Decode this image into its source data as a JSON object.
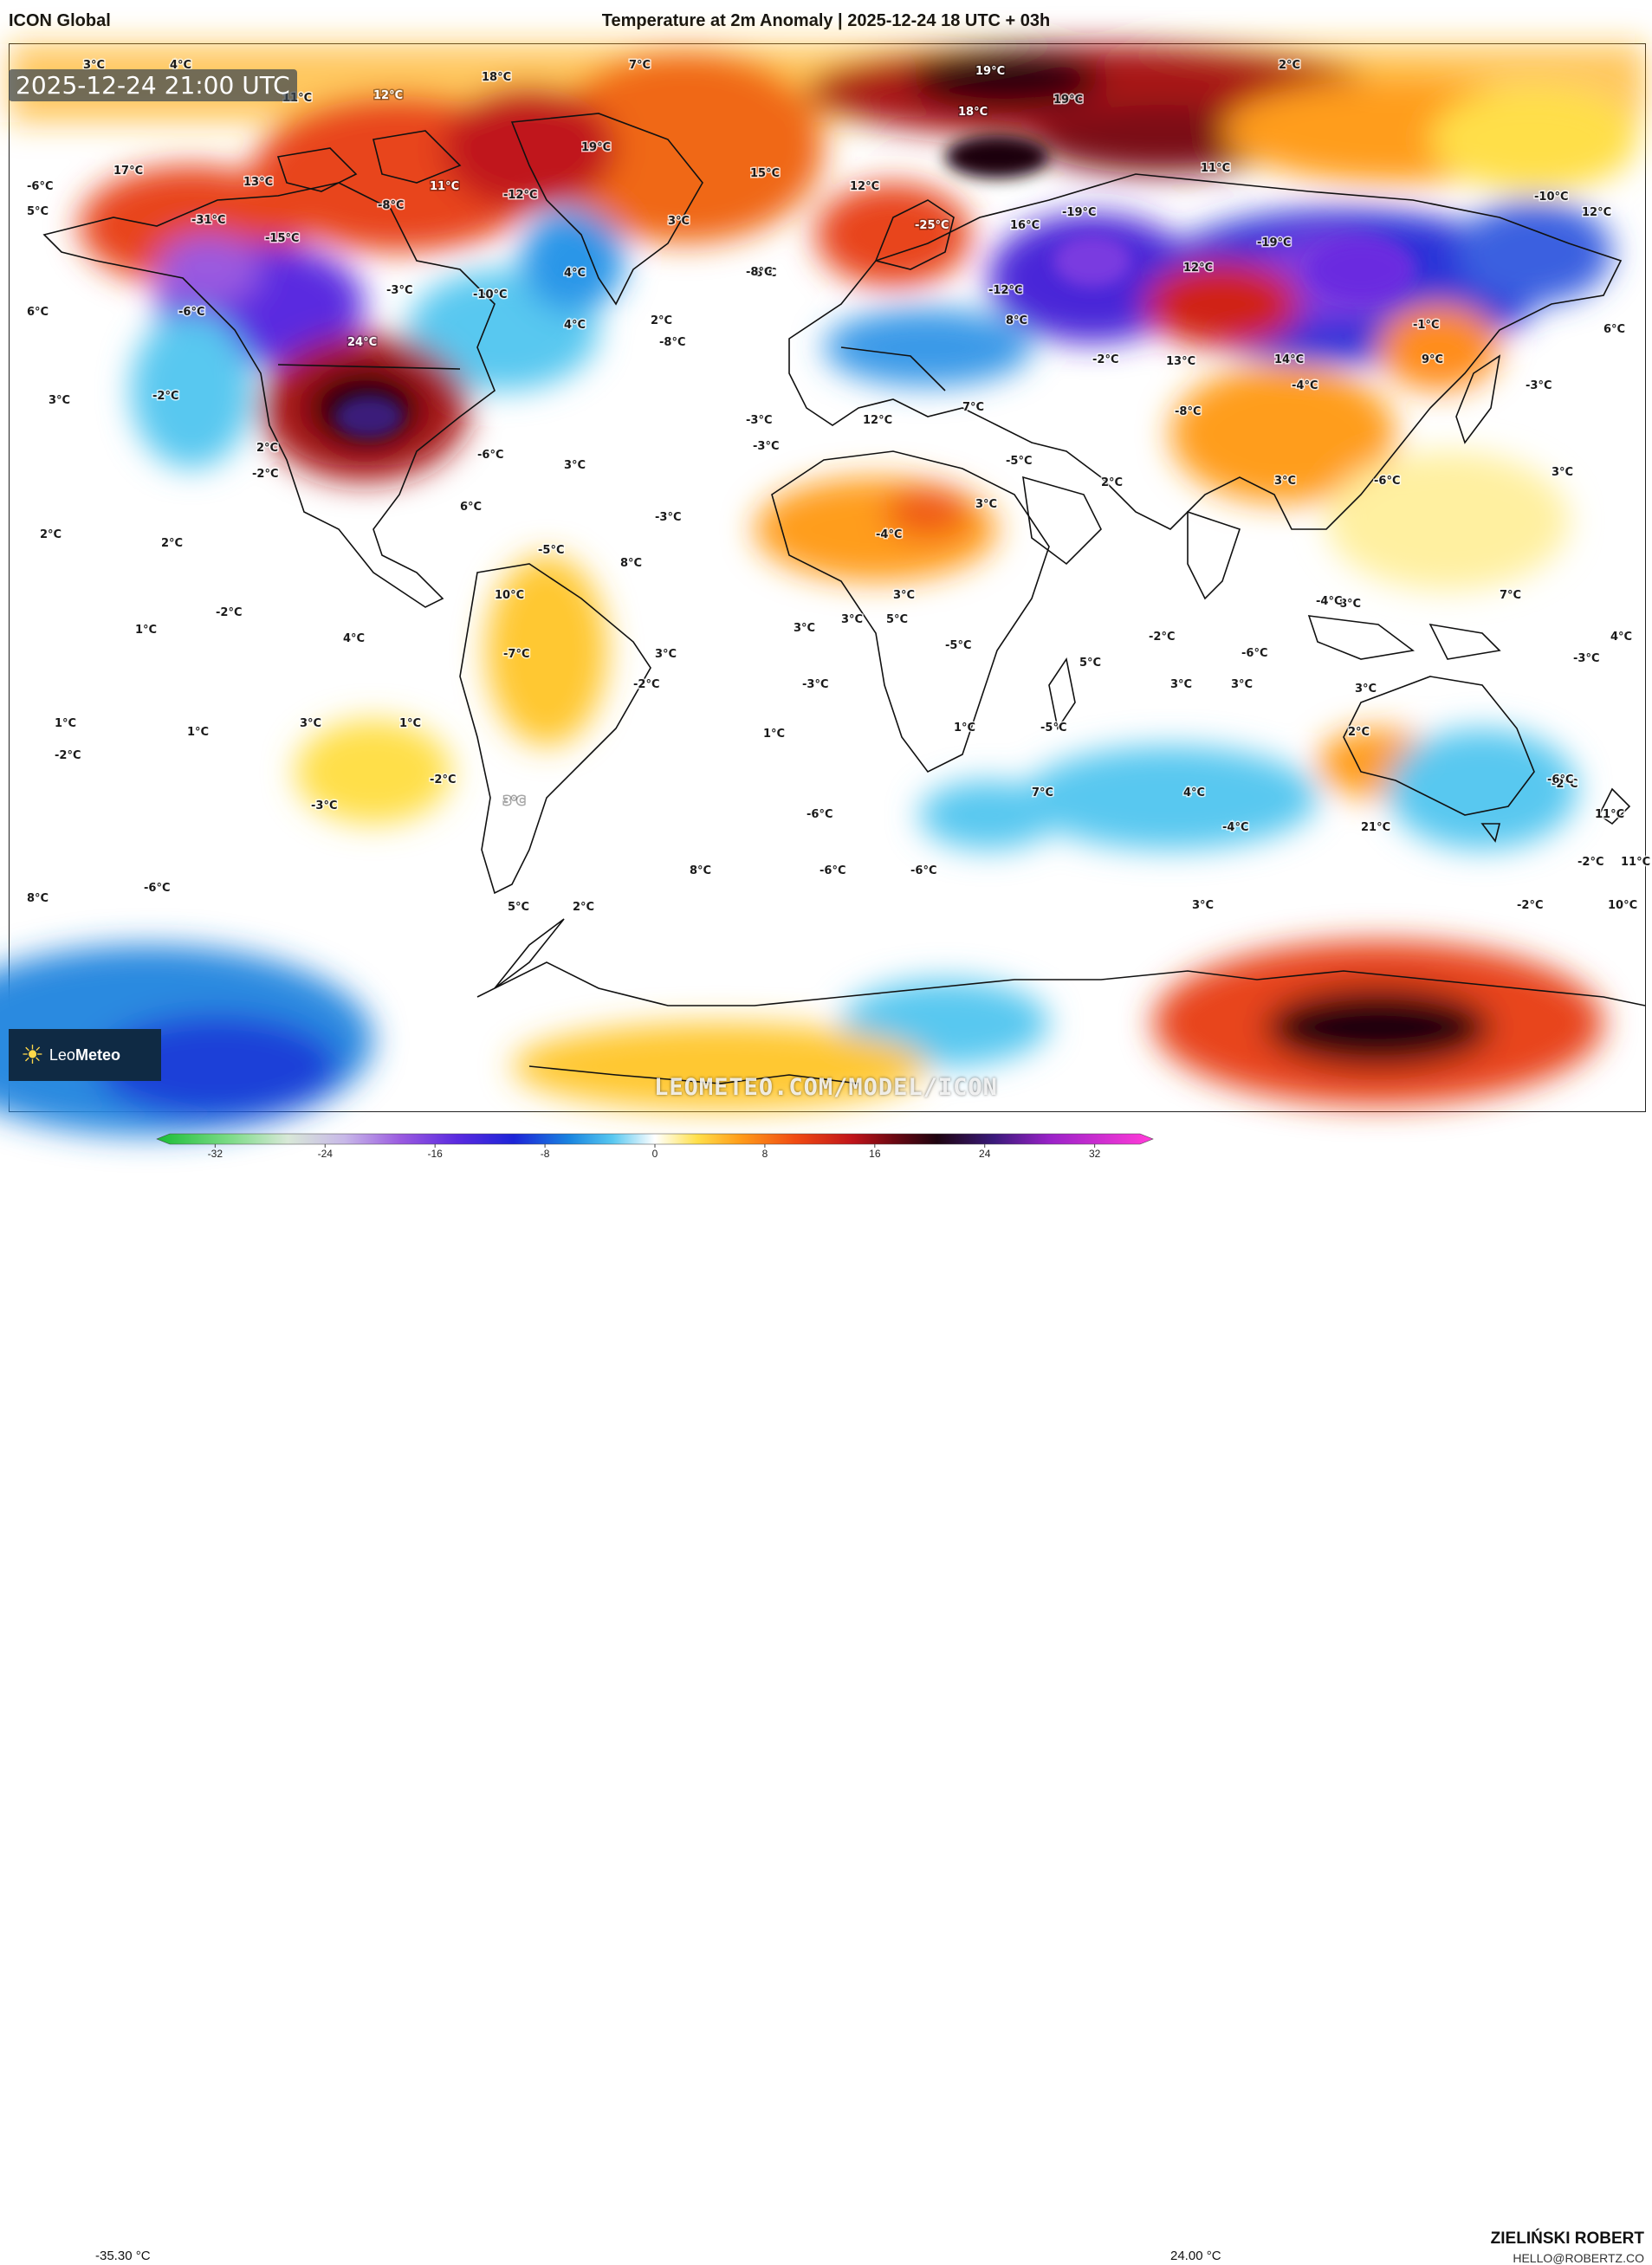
{
  "header": {
    "model": "ICON Global",
    "title": "Temperature at 2m Anomaly | 2025-12-24 18 UTC + 03h"
  },
  "map": {
    "timestamp": "2025-12-24 21:00 UTC",
    "watermark": "LEOMETEO.COM/MODEL/ICON",
    "labels": [
      {
        "t": "3°C"
      },
      {
        "t": "4°C"
      },
      {
        "t": "18°C"
      },
      {
        "t": "7°C"
      },
      {
        "t": "19°C"
      },
      {
        "t": "2°C"
      },
      {
        "t": "11°C"
      },
      {
        "t": "12°C"
      },
      {
        "t": "18°C"
      },
      {
        "t": "19°C"
      },
      {
        "t": "17°C"
      },
      {
        "t": "13°C"
      },
      {
        "t": "11°C"
      },
      {
        "t": "19°C"
      },
      {
        "t": "-12°C"
      },
      {
        "t": "-6°C"
      },
      {
        "t": "5°C"
      },
      {
        "t": "-31°C"
      },
      {
        "t": "-15°C"
      },
      {
        "t": "-8°C"
      },
      {
        "t": "15°C"
      },
      {
        "t": "12°C"
      },
      {
        "t": "-25°C"
      },
      {
        "t": "16°C"
      },
      {
        "t": "-19°C"
      },
      {
        "t": "-19°C"
      },
      {
        "t": "-10°C"
      },
      {
        "t": "12°C"
      },
      {
        "t": "11°C"
      },
      {
        "t": "-8°C"
      },
      {
        "t": "3°C"
      },
      {
        "t": "4°C"
      },
      {
        "t": "-3°C"
      },
      {
        "t": "-10°C"
      },
      {
        "t": "-8°C"
      },
      {
        "t": "-12°C"
      },
      {
        "t": "12°C"
      },
      {
        "t": "6°C"
      },
      {
        "t": "-6°C"
      },
      {
        "t": "24°C"
      },
      {
        "t": "4°C"
      },
      {
        "t": "2°C"
      },
      {
        "t": "-8°C"
      },
      {
        "t": "8°C"
      },
      {
        "t": "-2°C"
      },
      {
        "t": "13°C"
      },
      {
        "t": "14°C"
      },
      {
        "t": "-4°C"
      },
      {
        "t": "-1°C"
      },
      {
        "t": "9°C"
      },
      {
        "t": "6°C"
      },
      {
        "t": "3°C"
      },
      {
        "t": "-2°C"
      },
      {
        "t": "-3°C"
      },
      {
        "t": "3°C"
      },
      {
        "t": "-8°C"
      },
      {
        "t": "-3°C"
      },
      {
        "t": "12°C"
      },
      {
        "t": "7°C"
      },
      {
        "t": "-3°C"
      },
      {
        "t": "2°C"
      },
      {
        "t": "-2°C"
      },
      {
        "t": "-6°C"
      },
      {
        "t": "3°C"
      },
      {
        "t": "-5°C"
      },
      {
        "t": "2°C"
      },
      {
        "t": "3°C"
      },
      {
        "t": "-6°C"
      },
      {
        "t": "3°C"
      },
      {
        "t": "6°C"
      },
      {
        "t": "-3°C"
      },
      {
        "t": "2°C"
      },
      {
        "t": "2°C"
      },
      {
        "t": "-5°C"
      },
      {
        "t": "8°C"
      },
      {
        "t": "-4°C"
      },
      {
        "t": "3°C"
      },
      {
        "t": "8°C"
      },
      {
        "t": "-4°C"
      },
      {
        "t": "7°C"
      },
      {
        "t": "-2°C"
      },
      {
        "t": "10°C"
      },
      {
        "t": "5°C"
      },
      {
        "t": "3°C"
      },
      {
        "t": "1°C"
      },
      {
        "t": "4°C"
      },
      {
        "t": "3°C"
      },
      {
        "t": "-5°C"
      },
      {
        "t": "-2°C"
      },
      {
        "t": "-6°C"
      },
      {
        "t": "4°C"
      },
      {
        "t": "-7°C"
      },
      {
        "t": "3°C"
      },
      {
        "t": "5°C"
      },
      {
        "t": "-3°C"
      },
      {
        "t": "-2°C"
      },
      {
        "t": "-3°C"
      },
      {
        "t": "3°C"
      },
      {
        "t": "1°C"
      },
      {
        "t": "3°C"
      },
      {
        "t": "-5°C"
      },
      {
        "t": "1°C"
      },
      {
        "t": "3°C"
      },
      {
        "t": "3°C"
      },
      {
        "t": "1°C"
      },
      {
        "t": "1°C"
      },
      {
        "t": "1°C"
      },
      {
        "t": "2°C"
      },
      {
        "t": "-2°C"
      },
      {
        "t": "-2°C"
      },
      {
        "t": "-2°C"
      },
      {
        "t": "-3°C"
      },
      {
        "t": "3°C"
      },
      {
        "t": "-6°C"
      },
      {
        "t": "7°C"
      },
      {
        "t": "4°C"
      },
      {
        "t": "-4°C"
      },
      {
        "t": "21°C"
      },
      {
        "t": "11°C"
      },
      {
        "t": "-6°C"
      },
      {
        "t": "8°C"
      },
      {
        "t": "-6°C"
      },
      {
        "t": "-6°C"
      },
      {
        "t": "11°C"
      },
      {
        "t": "-2°C"
      },
      {
        "t": "8°C"
      },
      {
        "t": "5°C"
      },
      {
        "t": "2°C"
      },
      {
        "t": "3°C"
      },
      {
        "t": "-2°C"
      },
      {
        "t": "10°C"
      },
      {
        "t": "-6°C"
      }
    ]
  },
  "logo": {
    "brand_a": "Leo",
    "brand_b": "Meteo"
  },
  "colorbar": {
    "min_label": "-35.30 °C",
    "max_label": "24.00 °C",
    "ticks": [
      "-32",
      "-24",
      "-16",
      "-8",
      "0",
      "8",
      "16",
      "24",
      "32"
    ],
    "range": [
      -35.3,
      35.3
    ],
    "stops": [
      {
        "v": -35,
        "c": "#1fbf3a"
      },
      {
        "v": -30,
        "c": "#7fdc8a"
      },
      {
        "v": -26,
        "c": "#d8e8d8"
      },
      {
        "v": -22,
        "c": "#c8b8e8"
      },
      {
        "v": -18,
        "c": "#9a5ae0"
      },
      {
        "v": -14,
        "c": "#5a2ae0"
      },
      {
        "v": -10,
        "c": "#1c24d8"
      },
      {
        "v": -6,
        "c": "#1a86e0"
      },
      {
        "v": -3,
        "c": "#58c8f0"
      },
      {
        "v": -1,
        "c": "#c8ecfa"
      },
      {
        "v": 0,
        "c": "#ffffff"
      },
      {
        "v": 1,
        "c": "#fff6c4"
      },
      {
        "v": 3,
        "c": "#ffdf4a"
      },
      {
        "v": 6,
        "c": "#ff9d1a"
      },
      {
        "v": 10,
        "c": "#f04a12"
      },
      {
        "v": 14,
        "c": "#c0141a"
      },
      {
        "v": 17,
        "c": "#6a0812"
      },
      {
        "v": 20,
        "c": "#1e0410"
      },
      {
        "v": 24,
        "c": "#3a1a7a"
      },
      {
        "v": 28,
        "c": "#9a22c8"
      },
      {
        "v": 35,
        "c": "#ff3ad8"
      }
    ]
  },
  "footer": {
    "author": "ZIELIŃSKI ROBERT",
    "email": "HELLO@ROBERTZ.CO"
  }
}
